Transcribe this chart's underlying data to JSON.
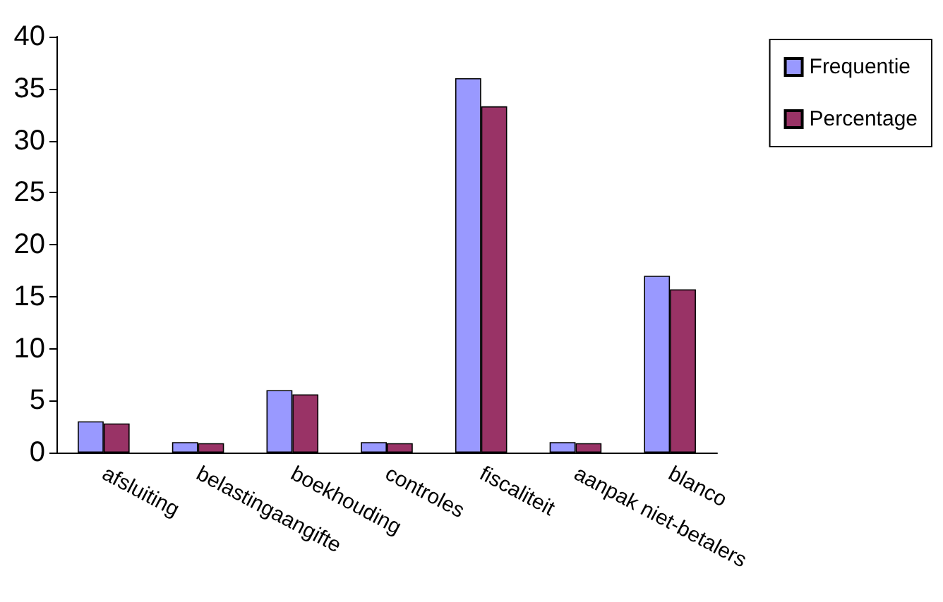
{
  "chart_data": {
    "type": "bar",
    "categories": [
      "afsluiting",
      "belastingaangifte",
      "boekhouding",
      "controles",
      "fiscaliteit",
      "aanpak niet-betalers",
      "blanco"
    ],
    "series": [
      {
        "name": "Frequentie",
        "color": "#9999ff",
        "values": [
          3,
          1,
          6,
          1,
          36,
          1,
          17
        ]
      },
      {
        "name": "Percentage",
        "color": "#993366",
        "values": [
          2.8,
          0.9,
          5.6,
          0.9,
          33.3,
          0.9,
          15.7
        ]
      }
    ],
    "ylim": [
      0,
      40
    ],
    "yticks": [
      0,
      5,
      10,
      15,
      20,
      25,
      30,
      35,
      40
    ],
    "grid": false,
    "legend": "top right"
  }
}
